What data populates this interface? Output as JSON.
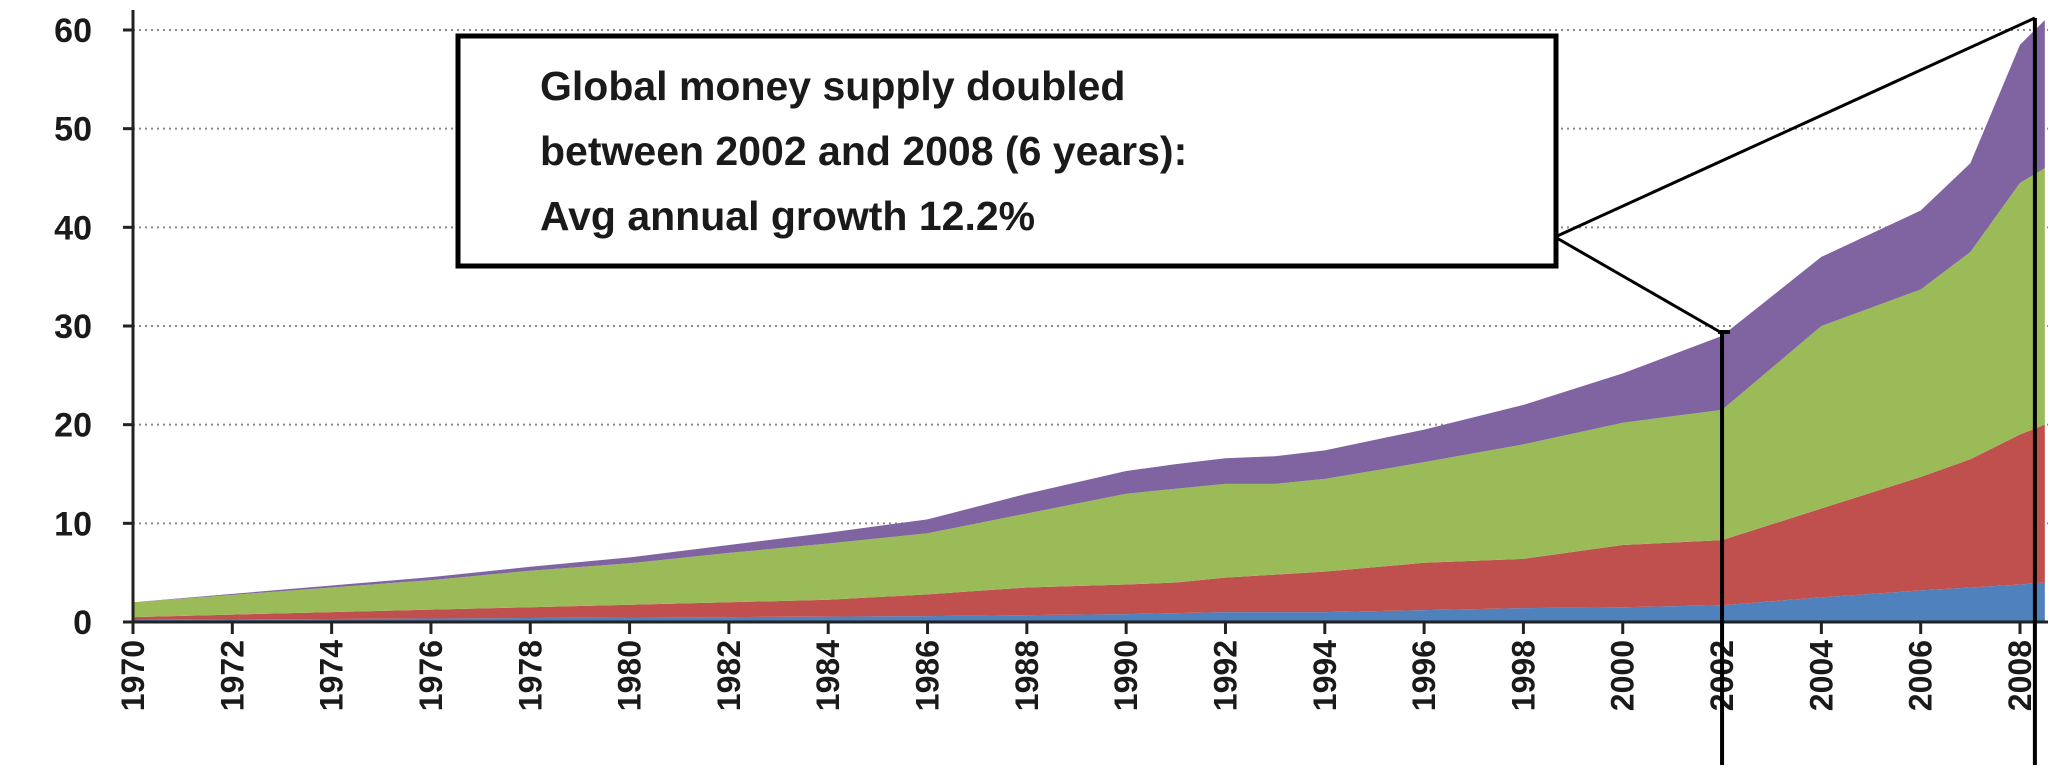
{
  "chart_data": {
    "type": "area",
    "stacked": true,
    "title": "",
    "xlabel": "",
    "ylabel": "",
    "xlim": [
      1970,
      2008.5
    ],
    "ylim": [
      0,
      62
    ],
    "y_ticks": [
      0,
      10,
      20,
      30,
      40,
      50,
      60
    ],
    "x_ticks": [
      "1970",
      "1972",
      "1974",
      "1976",
      "1978",
      "1980",
      "1982",
      "1984",
      "1986",
      "1988",
      "1990",
      "1992",
      "1994",
      "1996",
      "1998",
      "2000",
      "2002",
      "2004",
      "2006",
      "2008"
    ],
    "grid": "horizontal dotted",
    "legend": "none",
    "x": [
      1970,
      1972,
      1974,
      1976,
      1978,
      1980,
      1982,
      1984,
      1986,
      1988,
      1990,
      1991,
      1992,
      1993,
      1994,
      1996,
      1998,
      2000,
      2002,
      2004,
      2006,
      2007,
      2008,
      2008.5
    ],
    "series": [
      {
        "color": "#4f81bd",
        "values": [
          0.2,
          0.25,
          0.3,
          0.35,
          0.4,
          0.45,
          0.5,
          0.55,
          0.6,
          0.7,
          0.8,
          0.9,
          1.0,
          1.0,
          1.0,
          1.2,
          1.4,
          1.5,
          1.7,
          2.5,
          3.2,
          3.5,
          3.8,
          4.0
        ]
      },
      {
        "color": "#c0504d",
        "values": [
          0.3,
          0.5,
          0.7,
          0.9,
          1.1,
          1.3,
          1.5,
          1.7,
          2.2,
          2.8,
          3.0,
          3.1,
          3.5,
          3.8,
          4.1,
          4.8,
          5.0,
          6.3,
          6.6,
          9.0,
          11.5,
          13.0,
          15.2,
          16.0
        ]
      },
      {
        "color": "#9bbb59",
        "values": [
          1.5,
          2.0,
          2.5,
          3.0,
          3.7,
          4.2,
          5.0,
          5.7,
          6.2,
          7.5,
          9.2,
          9.5,
          9.5,
          9.2,
          9.4,
          10.2,
          11.6,
          12.4,
          13.2,
          18.5,
          19.0,
          21.0,
          25.5,
          26.0
        ]
      },
      {
        "color": "#8064a2",
        "values": [
          0.0,
          0.1,
          0.2,
          0.3,
          0.4,
          0.6,
          0.8,
          1.1,
          1.4,
          2.0,
          2.3,
          2.5,
          2.6,
          2.8,
          2.9,
          3.3,
          4.0,
          5.0,
          7.5,
          7.0,
          8.0,
          9.0,
          14.0,
          15.0
        ]
      }
    ],
    "annotation": {
      "lines": [
        "Global money supply doubled",
        "between 2002 and 2008 (6 years):",
        "Avg annual growth 12.2%"
      ],
      "markers": [
        2002,
        2008.3
      ]
    }
  }
}
